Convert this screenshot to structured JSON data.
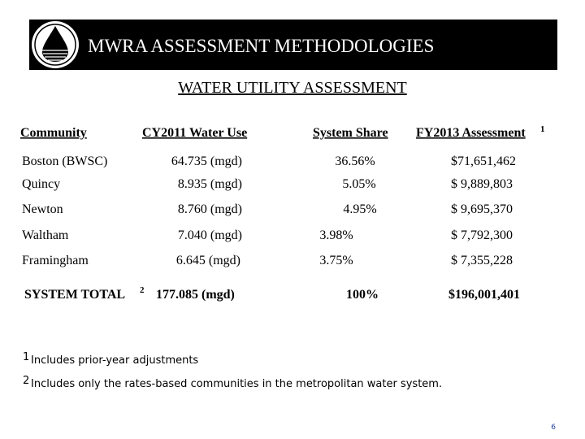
{
  "header": {
    "title": "MWRA ASSESSMENT METHODOLOGIES"
  },
  "subtitle": "WATER UTILITY ASSESSMENT",
  "table": {
    "columns": [
      "Community",
      "CY2011 Water Use",
      "System Share",
      "FY2013 Assessment"
    ],
    "column_note": "1",
    "rows": [
      [
        "Boston (BWSC)",
        "64.735 (mgd)",
        "36.56%",
        "$71,651,462"
      ],
      [
        "Quincy",
        "8.935 (mgd)",
        "5.05%",
        "$ 9,889,803"
      ],
      [
        "Newton",
        "8.760 (mgd)",
        "4.95%",
        "$ 9,695,370"
      ],
      [
        "Waltham",
        "7.040 (mgd)",
        "3.98%",
        "$ 7,792,300"
      ],
      [
        "Framingham",
        "6.645 (mgd)",
        "3.75%",
        "$ 7,355,228"
      ]
    ],
    "total": {
      "label": "SYSTEM TOTAL",
      "note": "2",
      "values": [
        "177.085 (mgd)",
        "100%",
        "$196,001,401"
      ]
    }
  },
  "footnotes": [
    {
      "marker": "1",
      "text": "Includes prior-year adjustments"
    },
    {
      "marker": "2",
      "text": "Includes only the rates-based communities in the metropolitan water system."
    }
  ],
  "page_number": "6"
}
